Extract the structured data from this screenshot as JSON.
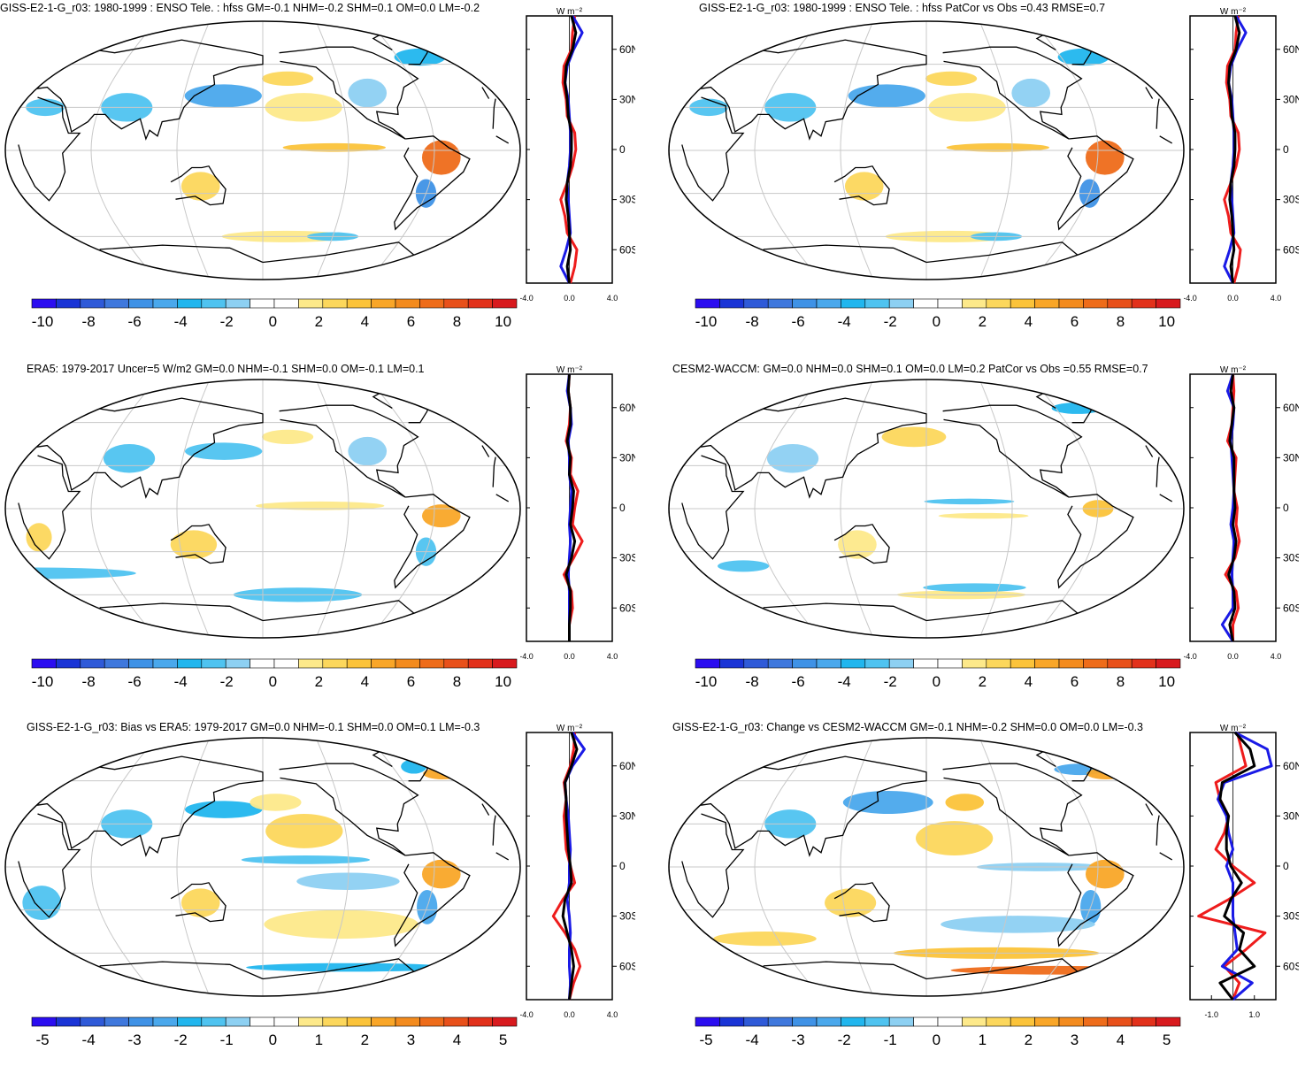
{
  "palette": {
    "neg": [
      "#2b0df0",
      "#1a34d6",
      "#2f5ad8",
      "#3f78dd",
      "#3f92e6",
      "#4aa8ec",
      "#21b6ee",
      "#4fc3f0",
      "#8dd0f2"
    ],
    "pos": [
      "#fde98a",
      "#fcd75c",
      "#fbc33a",
      "#f9a628",
      "#f38b1e",
      "#ee6c1a",
      "#e8501a",
      "#e2311b",
      "#d81a1e"
    ],
    "curves": {
      "red": "#ee1c1c",
      "blue": "#1a1ae6",
      "black": "#000000"
    }
  },
  "panels": [
    {
      "id": "p1",
      "title": "GISS-E2-1-G_r03: 1980-1999 : ENSO Tele. : hfss GM=-0.1 NHM=-0.2 SHM=0.1 OM=0.0 LM=-0.2",
      "scale": "a",
      "cbar": "a",
      "zlim": [
        -4,
        4
      ],
      "zt": [
        "-4.0",
        "0.0",
        "4.0"
      ],
      "zunit": "W m⁻²"
    },
    {
      "id": "p2",
      "title": "GISS-E2-1-G_r03: 1980-1999 : ENSO Tele. : hfss PatCor vs Obs =0.43 RMSE=0.7",
      "scale": "a",
      "cbar": "a",
      "zlim": [
        -4,
        4
      ],
      "zt": [
        "-4.0",
        "0.0",
        "4.0"
      ],
      "zunit": "W m⁻²"
    },
    {
      "id": "p3",
      "title": "ERA5: 1979-2017 Uncer=5 W/m2 GM=0.0 NHM=-0.1 SHM=0.0 OM=-0.1 LM=0.1",
      "scale": "a",
      "cbar": "a",
      "zlim": [
        -4,
        4
      ],
      "zt": [
        "-4.0",
        "0.0",
        "4.0"
      ],
      "zunit": "W m⁻²"
    },
    {
      "id": "p4",
      "title": "CESM2-WACCM: GM=0.0 NHM=0.0 SHM=0.1 OM=0.0 LM=0.2 PatCor vs Obs =0.55 RMSE=0.7",
      "scale": "a",
      "cbar": "a",
      "zlim": [
        -4,
        4
      ],
      "zt": [
        "-4.0",
        "0.0",
        "4.0"
      ],
      "zunit": "W m⁻²"
    },
    {
      "id": "p5",
      "title": "GISS-E2-1-G_r03: Bias vs ERA5: 1979-2017 GM=0.0 NHM=-0.1 SHM=0.0 OM=0.1 LM=-0.3",
      "scale": "b",
      "cbar": "b",
      "zlim": [
        -4,
        4
      ],
      "zt": [
        "-4.0",
        "0.0",
        "4.0"
      ],
      "zunit": "W m⁻²"
    },
    {
      "id": "p6",
      "title": "GISS-E2-1-G_r03: Change vs CESM2-WACCM GM=-0.1 NHM=-0.2 SHM=0.0 OM=0.0 LM=-0.3",
      "scale": "b",
      "cbar": "b",
      "zlim": [
        -2,
        2
      ],
      "zt": [
        "-1.0",
        "1.0"
      ],
      "zunit": "W m⁻²"
    }
  ],
  "colorbars": {
    "a": {
      "labels": [
        "-10",
        "-8",
        "-6",
        "-4",
        "-2",
        "0",
        "2",
        "4",
        "6",
        "8",
        "10"
      ]
    },
    "b": {
      "labels": [
        "-5",
        "-4",
        "-3",
        "-2",
        "-1",
        "0",
        "1",
        "2",
        "3",
        "4",
        "5"
      ]
    }
  },
  "lat_labels": [
    "60N",
    "30N",
    "0",
    "30S",
    "60S"
  ],
  "chart_data": {
    "type": "heatmap",
    "note_fields": "Global Robinson-projection maps of surface sensible heat flux (hfss) ENSO teleconnection; zonal-mean profiles on right",
    "lat": [
      80,
      70,
      60,
      50,
      40,
      30,
      20,
      10,
      0,
      -10,
      -20,
      -30,
      -40,
      -50,
      -60,
      -70,
      -80
    ],
    "zonal_profiles": {
      "p1": {
        "red": [
          0.5,
          0.3,
          0.2,
          -0.5,
          -0.6,
          -0.3,
          -0.2,
          0.5,
          0.6,
          0.3,
          -0.2,
          -0.8,
          -0.4,
          -0.2,
          0.7,
          0.5,
          0.1
        ],
        "blue": [
          0.3,
          1.2,
          0.4,
          -0.2,
          -0.4,
          -0.1,
          0.0,
          0.1,
          0.1,
          0.0,
          -0.2,
          -0.1,
          0.0,
          0.1,
          -0.3,
          -0.8,
          0.0
        ],
        "black": [
          0.2,
          0.6,
          0.3,
          -0.3,
          -0.4,
          -0.2,
          -0.1,
          0.2,
          0.2,
          0.1,
          -0.2,
          -0.3,
          -0.1,
          0.0,
          0.1,
          -0.2,
          0.0
        ]
      },
      "p2": {
        "red": [
          0.5,
          0.3,
          0.2,
          -0.5,
          -0.6,
          -0.3,
          -0.2,
          0.5,
          0.6,
          0.3,
          -0.2,
          -0.8,
          -0.4,
          -0.2,
          0.7,
          0.5,
          0.1
        ],
        "blue": [
          0.3,
          1.2,
          0.4,
          -0.2,
          -0.4,
          -0.1,
          0.0,
          0.1,
          0.1,
          0.0,
          -0.2,
          -0.1,
          0.0,
          0.1,
          -0.3,
          -0.8,
          0.0
        ],
        "black": [
          0.2,
          0.6,
          0.3,
          -0.3,
          -0.4,
          -0.2,
          -0.1,
          0.2,
          0.2,
          0.1,
          -0.2,
          -0.3,
          -0.1,
          0.0,
          0.1,
          -0.2,
          0.0
        ]
      },
      "p3": {
        "red": [
          0.0,
          -0.1,
          0.1,
          0.0,
          -0.3,
          0.2,
          0.1,
          0.8,
          0.5,
          0.3,
          1.2,
          0.4,
          -0.5,
          0.2,
          0.3,
          0.0,
          0.0
        ],
        "blue": [
          0.0,
          -0.2,
          0.1,
          0.2,
          -0.1,
          0.0,
          0.0,
          0.2,
          0.1,
          0.0,
          0.1,
          0.0,
          -0.1,
          0.0,
          0.0,
          0.0,
          0.0
        ],
        "black": [
          0.0,
          -0.1,
          0.1,
          0.1,
          -0.2,
          0.1,
          0.0,
          0.4,
          0.3,
          0.1,
          0.5,
          0.2,
          -0.3,
          0.1,
          0.1,
          0.0,
          0.0
        ]
      },
      "p4": {
        "red": [
          0.0,
          0.1,
          0.0,
          -0.1,
          -0.5,
          0.3,
          0.2,
          0.1,
          0.4,
          0.3,
          0.6,
          0.2,
          -0.7,
          0.3,
          0.5,
          0.0,
          0.0
        ],
        "blue": [
          0.0,
          -0.5,
          0.1,
          0.0,
          -0.2,
          -0.1,
          0.0,
          0.1,
          0.0,
          -0.2,
          0.1,
          0.0,
          -0.1,
          0.0,
          0.0,
          -1.0,
          0.0
        ],
        "black": [
          0.0,
          -0.2,
          0.1,
          -0.1,
          -0.3,
          0.1,
          0.1,
          0.1,
          0.2,
          0.0,
          0.3,
          0.1,
          -0.4,
          0.1,
          0.2,
          -0.3,
          0.0
        ]
      },
      "p5": {
        "red": [
          0.5,
          0.4,
          0.1,
          -0.5,
          -0.3,
          -0.5,
          -0.4,
          -0.3,
          0.1,
          0.5,
          -0.6,
          -1.5,
          -0.4,
          0.5,
          1.0,
          0.4,
          0.0
        ],
        "blue": [
          0.3,
          1.4,
          0.3,
          -0.4,
          -0.3,
          -0.1,
          0.0,
          0.1,
          0.0,
          0.0,
          -0.2,
          0.0,
          0.1,
          0.0,
          0.0,
          0.1,
          0.0
        ],
        "black": [
          0.2,
          0.7,
          0.2,
          -0.4,
          -0.3,
          -0.3,
          -0.2,
          -0.1,
          0.1,
          0.2,
          -0.4,
          -0.6,
          -0.2,
          0.2,
          0.4,
          0.2,
          0.0
        ]
      },
      "p6": {
        "red": [
          0.2,
          0.4,
          0.6,
          -0.8,
          -0.6,
          -0.2,
          -0.4,
          -0.8,
          0.0,
          1.0,
          -0.2,
          -1.6,
          1.5,
          0.6,
          -0.4,
          0.3,
          0.0
        ],
        "blue": [
          0.1,
          1.6,
          1.8,
          -0.4,
          -0.7,
          -0.3,
          -0.2,
          0.0,
          -0.3,
          0.0,
          0.0,
          0.0,
          0.1,
          0.2,
          -0.5,
          0.9,
          0.0
        ],
        "black": [
          0.1,
          0.8,
          1.0,
          -0.5,
          -0.6,
          -0.2,
          -0.3,
          -0.3,
          -0.1,
          0.4,
          -0.1,
          -0.4,
          0.5,
          0.3,
          1.0,
          -0.6,
          0.0
        ]
      }
    }
  }
}
